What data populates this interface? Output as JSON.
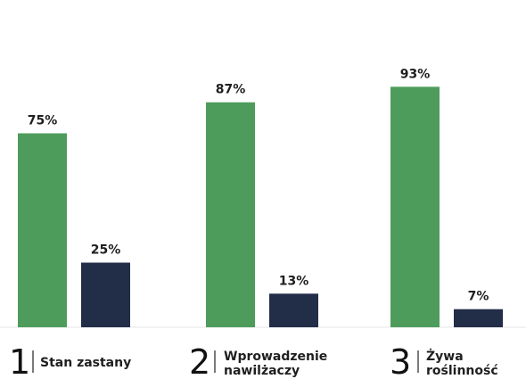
{
  "chart_data": {
    "type": "bar",
    "categories": [
      {
        "number": "1",
        "label": [
          "Stan zastany"
        ]
      },
      {
        "number": "2",
        "label": [
          "Wprowadzenie",
          "nawilżaczy"
        ]
      },
      {
        "number": "3",
        "label": [
          "Żywa",
          "roślinność"
        ]
      }
    ],
    "series": [
      {
        "color": "#4e9c5b",
        "values": [
          75,
          87,
          93
        ],
        "labels": [
          "75%",
          "87%",
          "93%"
        ]
      },
      {
        "color": "#222d48",
        "values": [
          25,
          13,
          7
        ],
        "labels": [
          "25%",
          "13%",
          "7%"
        ]
      }
    ],
    "ylim": [
      0,
      100
    ],
    "grid": false,
    "legend": "none"
  }
}
